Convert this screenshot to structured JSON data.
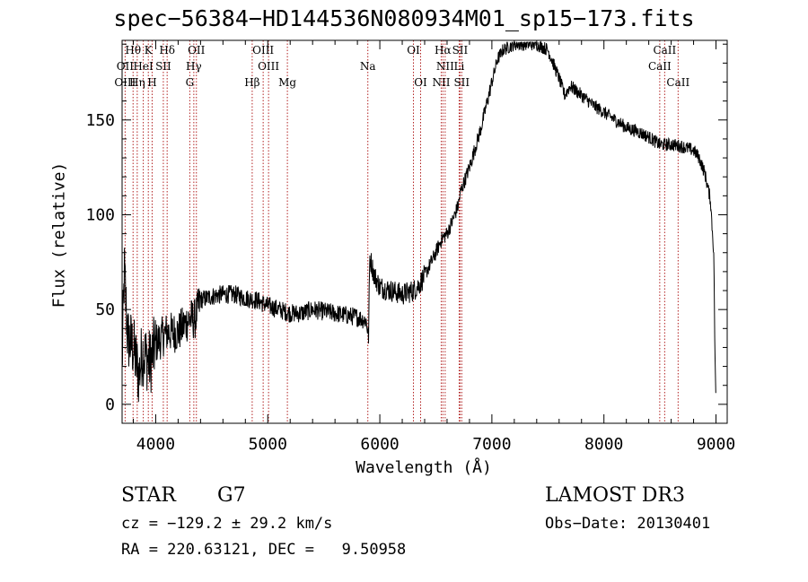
{
  "title": "spec−56384−HD144536N080934M01_sp15−173.fits",
  "info": {
    "object_class": "STAR",
    "object_type": "G7",
    "survey": "LAMOST DR3",
    "cz": "cz = −129.2 ± 29.2 km/s",
    "obs_date": "Obs−Date: 20130401",
    "ra_dec": "RA = 220.63121, DEC =   9.50958"
  },
  "colors": {
    "spectrum": "#000000",
    "lines": "#b22222"
  },
  "chart_data": {
    "type": "line",
    "title": "spec−56384−HD144536N080934M01_sp15−173.fits",
    "xlabel": "Wavelength (Å)",
    "ylabel": "Flux (relative)",
    "xlim": [
      3700,
      9100
    ],
    "ylim": [
      -10,
      192
    ],
    "xticks": [
      4000,
      5000,
      6000,
      7000,
      8000,
      9000
    ],
    "yticks": [
      0,
      50,
      100,
      150
    ],
    "x_minor_step": 200,
    "y_minor_step": 10,
    "spectrum_anchors": [
      [
        3700,
        20
      ],
      [
        3720,
        70
      ],
      [
        3750,
        35
      ],
      [
        3800,
        30
      ],
      [
        3850,
        15
      ],
      [
        3880,
        28
      ],
      [
        3950,
        22
      ],
      [
        4000,
        32
      ],
      [
        4100,
        38
      ],
      [
        4200,
        38
      ],
      [
        4300,
        45
      ],
      [
        4350,
        45
      ],
      [
        4400,
        55
      ],
      [
        4500,
        57
      ],
      [
        4600,
        58
      ],
      [
        4700,
        58
      ],
      [
        4800,
        56
      ],
      [
        4900,
        55
      ],
      [
        5000,
        52
      ],
      [
        5100,
        50
      ],
      [
        5200,
        48
      ],
      [
        5300,
        48
      ],
      [
        5400,
        50
      ],
      [
        5500,
        49
      ],
      [
        5600,
        48
      ],
      [
        5700,
        47
      ],
      [
        5800,
        46
      ],
      [
        5880,
        44
      ],
      [
        5900,
        35
      ],
      [
        5910,
        78
      ],
      [
        5950,
        68
      ],
      [
        6000,
        62
      ],
      [
        6100,
        60
      ],
      [
        6200,
        58
      ],
      [
        6300,
        60
      ],
      [
        6350,
        63
      ],
      [
        6400,
        68
      ],
      [
        6500,
        80
      ],
      [
        6550,
        87
      ],
      [
        6600,
        90
      ],
      [
        6650,
        97
      ],
      [
        6700,
        105
      ],
      [
        6720,
        112
      ],
      [
        6800,
        125
      ],
      [
        6900,
        145
      ],
      [
        7000,
        170
      ],
      [
        7050,
        182
      ],
      [
        7100,
        187
      ],
      [
        7200,
        190
      ],
      [
        7300,
        190
      ],
      [
        7400,
        190
      ],
      [
        7500,
        187
      ],
      [
        7600,
        172
      ],
      [
        7650,
        163
      ],
      [
        7700,
        168
      ],
      [
        7800,
        163
      ],
      [
        7900,
        158
      ],
      [
        8000,
        154
      ],
      [
        8100,
        150
      ],
      [
        8200,
        146
      ],
      [
        8300,
        144
      ],
      [
        8400,
        141
      ],
      [
        8500,
        137
      ],
      [
        8600,
        137
      ],
      [
        8700,
        136
      ],
      [
        8800,
        134
      ],
      [
        8850,
        130
      ],
      [
        8900,
        122
      ],
      [
        8950,
        108
      ],
      [
        8980,
        80
      ],
      [
        8990,
        30
      ],
      [
        9000,
        0
      ]
    ],
    "lines": [
      {
        "label": "Hθ",
        "wave": 3798,
        "row": 0
      },
      {
        "label": "K",
        "wave": 3934,
        "row": 0
      },
      {
        "label": "Hδ",
        "wave": 4102,
        "row": 0
      },
      {
        "label": "OII",
        "wave": 4363,
        "row": 0
      },
      {
        "label": "OIII",
        "wave": 4959,
        "row": 0
      },
      {
        "label": "OI",
        "wave": 6300,
        "row": 0
      },
      {
        "label": "Hα",
        "wave": 6563,
        "row": 0
      },
      {
        "label": "SII",
        "wave": 6716,
        "row": 0
      },
      {
        "label": "CaII",
        "wave": 8542,
        "row": 0
      },
      {
        "label": "OII",
        "wave": 3727,
        "row": 1
      },
      {
        "label": "HeI",
        "wave": 3889,
        "row": 1
      },
      {
        "label": "SII",
        "wave": 4068,
        "row": 1
      },
      {
        "label": "Hγ",
        "wave": 4340,
        "row": 1
      },
      {
        "label": "OIII",
        "wave": 5007,
        "row": 1
      },
      {
        "label": "Na",
        "wave": 5893,
        "row": 1
      },
      {
        "label": "NII",
        "wave": 6583,
        "row": 1
      },
      {
        "label": "Li",
        "wave": 6708,
        "row": 1
      },
      {
        "label": "CaII",
        "wave": 8498,
        "row": 1
      },
      {
        "label": "OIII",
        "wave": 3727,
        "row": 2
      },
      {
        "label": "Hη",
        "wave": 3835,
        "row": 2
      },
      {
        "label": "H",
        "wave": 3968,
        "row": 2
      },
      {
        "label": "G",
        "wave": 4304,
        "row": 2
      },
      {
        "label": "Hβ",
        "wave": 4861,
        "row": 2
      },
      {
        "label": "Mg",
        "wave": 5175,
        "row": 2
      },
      {
        "label": "OI",
        "wave": 6364,
        "row": 2
      },
      {
        "label": "NII",
        "wave": 6548,
        "row": 2
      },
      {
        "label": "SII",
        "wave": 6731,
        "row": 2
      },
      {
        "label": "CaII",
        "wave": 8662,
        "row": 2
      }
    ]
  }
}
